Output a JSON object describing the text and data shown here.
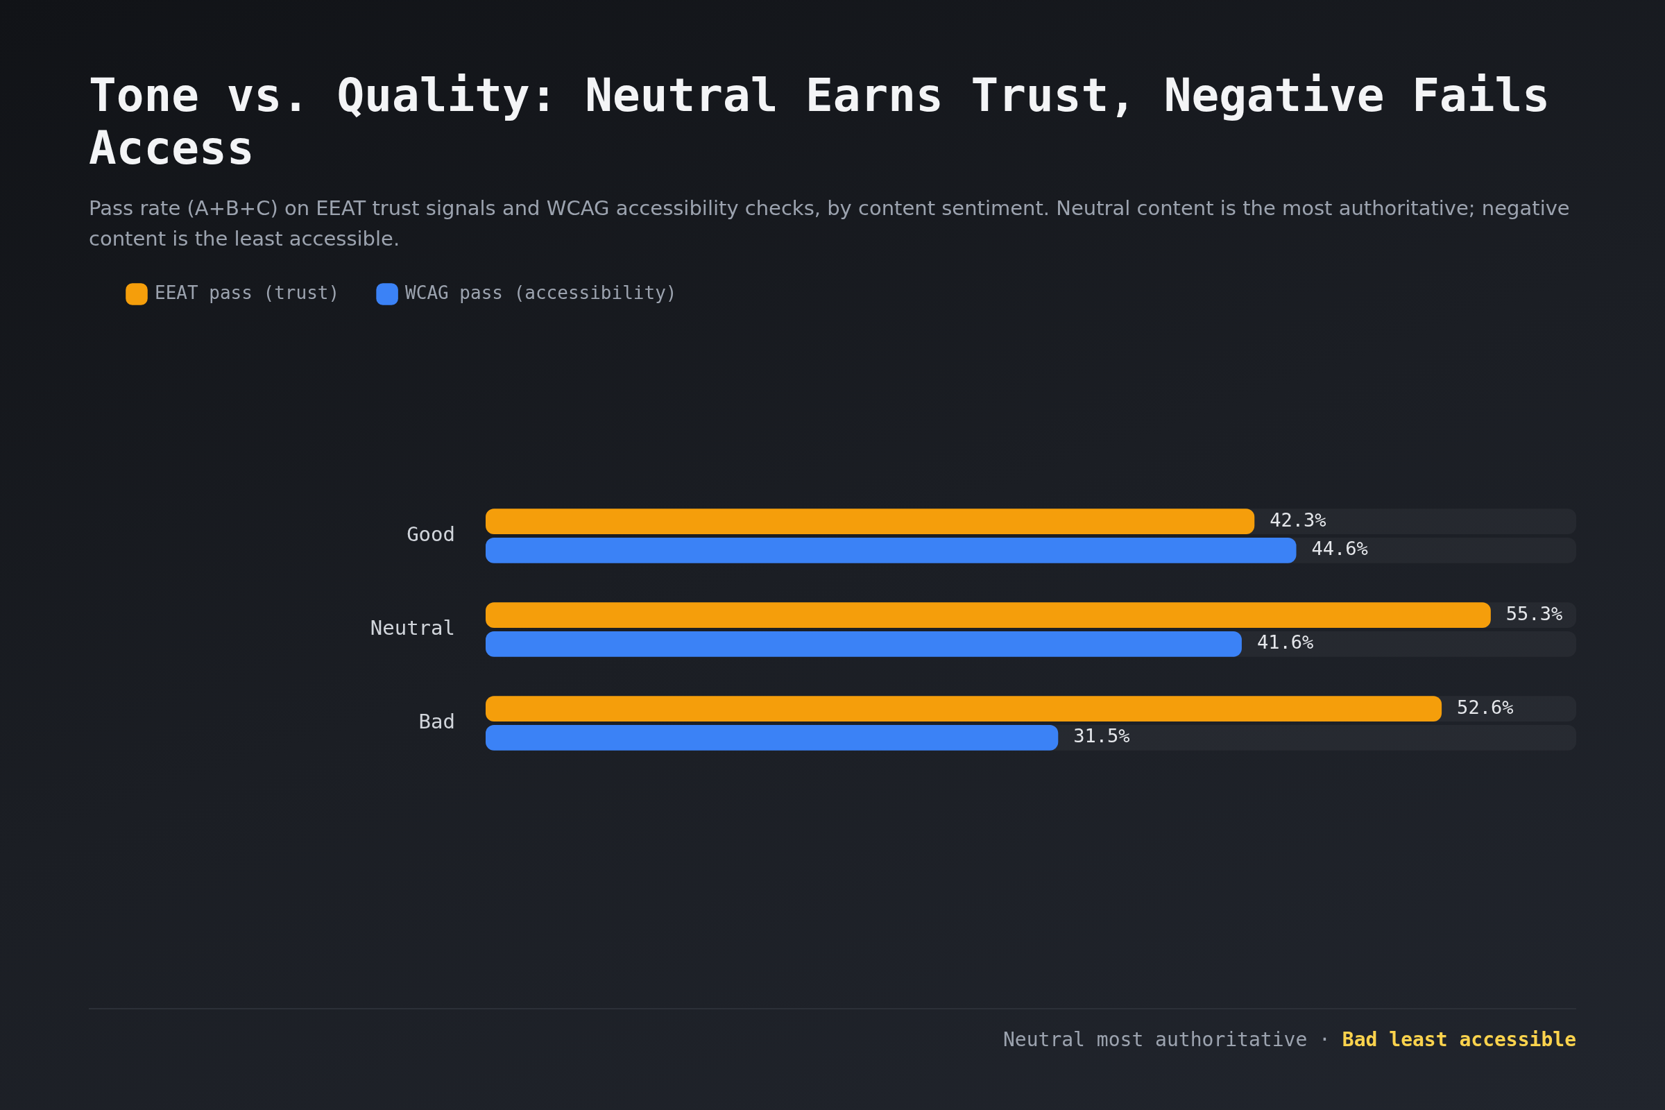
{
  "chart_data": {
    "type": "bar",
    "orientation": "horizontal",
    "title": "Tone vs. Quality: Neutral Earns Trust, Negative Fails Access",
    "subtitle": "Pass rate (A+B+C) on EEAT trust signals and WCAG accessibility checks, by content sentiment. Neutral content is the most authoritative; negative content is the least accessible.",
    "categories": [
      "Good",
      "Neutral",
      "Bad"
    ],
    "series": [
      {
        "name": "EEAT pass (trust)",
        "color": "#f59e0b",
        "values": [
          42.3,
          55.3,
          52.6
        ],
        "value_labels": [
          "42.3%",
          "55.3%",
          "52.6%"
        ]
      },
      {
        "name": "WCAG pass (accessibility)",
        "color": "#3b82f6",
        "values": [
          44.6,
          41.6,
          31.5
        ],
        "value_labels": [
          "44.6%",
          "41.6%",
          "31.5%"
        ]
      }
    ],
    "tick_labels": "y",
    "legend": "top left",
    "annotations": [
      "Neutral most authoritative ·",
      "Bad least accessible"
    ]
  }
}
